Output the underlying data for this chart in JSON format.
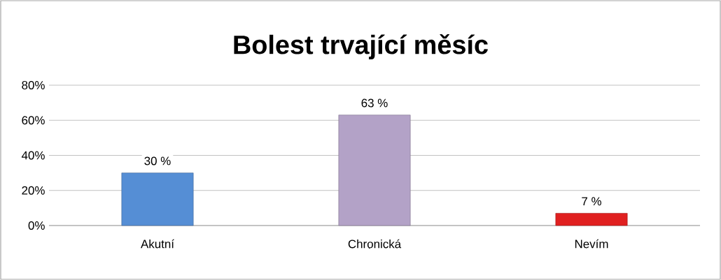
{
  "chart_data": {
    "type": "bar",
    "title": "Bolest trvající měsíc",
    "categories": [
      "Akutní",
      "Chronická",
      "Nevím"
    ],
    "values": [
      30,
      63,
      7
    ],
    "colors": [
      "#558ed5",
      "#b3a2c7",
      "#e02020"
    ],
    "value_labels": [
      "30 %",
      "63 %",
      "7 %"
    ],
    "ylim": [
      0,
      80
    ],
    "yticks": [
      {
        "value": 0,
        "label": "0%"
      },
      {
        "value": 20,
        "label": "20%"
      },
      {
        "value": 40,
        "label": "40%"
      },
      {
        "value": 60,
        "label": "60%"
      },
      {
        "value": 80,
        "label": "80%"
      }
    ],
    "grid": "y"
  }
}
